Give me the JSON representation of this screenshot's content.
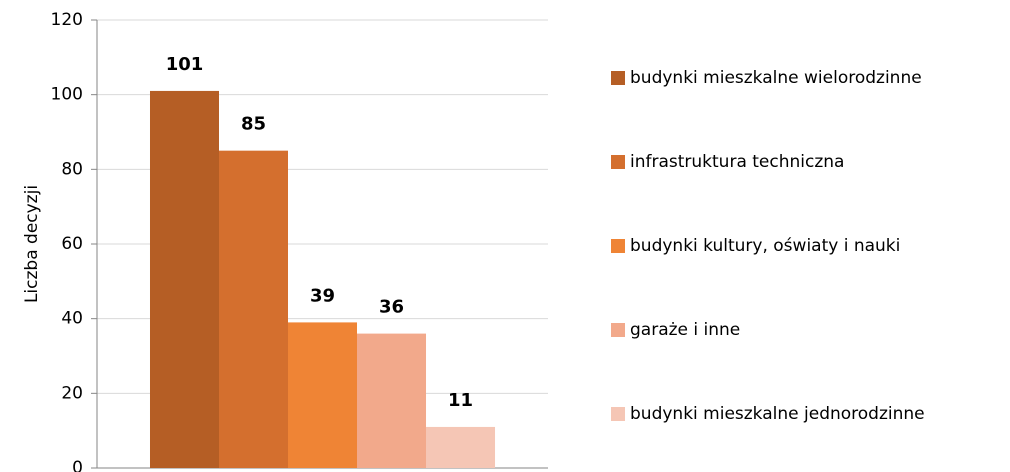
{
  "chart_data": {
    "type": "bar",
    "y_label": "Liczba decyzji",
    "categories": [
      null
    ],
    "series": [
      {
        "name": "budynki mieszkalne wielorodzinne",
        "color": "#b55e25",
        "values": [
          101
        ]
      },
      {
        "name": "infrastruktura techniczna",
        "color": "#d46f2e",
        "values": [
          85
        ]
      },
      {
        "name": "budynki kultury, oświaty i nauki",
        "color": "#ef8435",
        "values": [
          39
        ]
      },
      {
        "name": "garaże i inne",
        "color": "#f2a98b",
        "values": [
          36
        ]
      },
      {
        "name": "budynki mieszkalne jednorodzinne",
        "color": "#f5c6b5",
        "values": [
          11
        ]
      }
    ],
    "ylim": [
      0,
      120
    ],
    "yticks": [
      0,
      20,
      40,
      60,
      80,
      100,
      120
    ],
    "grid": true,
    "legend": "right"
  }
}
